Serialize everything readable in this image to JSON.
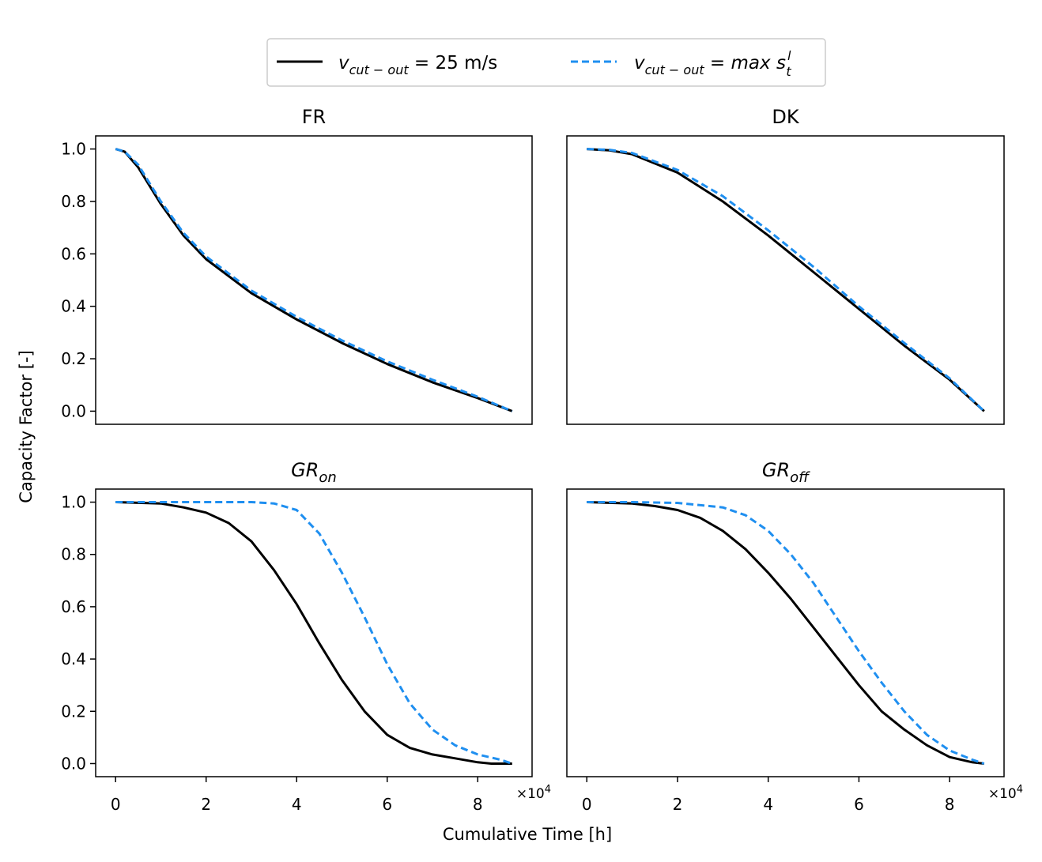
{
  "chart_data": {
    "type": "line",
    "legend": {
      "placement": "top-center",
      "entries": [
        {
          "series_key": "cut25",
          "var": "v",
          "sub": "cut − out",
          "rest": " = 25 m/s"
        },
        {
          "series_key": "cutmax",
          "var": "v",
          "sub": "cut − out",
          "rest": " = ",
          "expr": "max s",
          "expr_sup": "l",
          "expr_sub": "t"
        }
      ]
    },
    "series_styles": {
      "cut25": {
        "color": "#000000",
        "dash": "solid"
      },
      "cutmax": {
        "color": "#1f8ff0",
        "dash": "dashed"
      }
    },
    "xlabel": "Cumulative Time [h]",
    "ylabel": "Capacity Factor [-]",
    "x_multiplier": "×10",
    "x_multiplier_exp": "4",
    "xlim": [
      -0.44,
      9.2
    ],
    "ylim": [
      -0.05,
      1.05
    ],
    "x_ticks": [
      0,
      2,
      4,
      6,
      8
    ],
    "x_tick_labels": [
      "0",
      "2",
      "4",
      "6",
      "8"
    ],
    "y_ticks": [
      0,
      0.2,
      0.4,
      0.6,
      0.8,
      1.0
    ],
    "y_tick_labels": [
      "0.0",
      "0.2",
      "0.4",
      "0.6",
      "0.8",
      "1.0"
    ],
    "panels": [
      {
        "title": "FR",
        "title_base": "",
        "title_sub": "",
        "series": [
          {
            "key": "cut25",
            "x": [
              0,
              0.2,
              0.5,
              1.0,
              1.5,
              2.0,
              3.0,
              4.0,
              5.0,
              6.0,
              7.0,
              8.0,
              8.76
            ],
            "y": [
              1.0,
              0.99,
              0.93,
              0.79,
              0.67,
              0.58,
              0.45,
              0.35,
              0.26,
              0.18,
              0.11,
              0.05,
              0.0
            ]
          },
          {
            "key": "cutmax",
            "x": [
              0,
              0.2,
              0.5,
              1.0,
              1.5,
              2.0,
              3.0,
              4.0,
              5.0,
              6.0,
              7.0,
              8.0,
              8.76
            ],
            "y": [
              1.0,
              0.99,
              0.94,
              0.8,
              0.68,
              0.59,
              0.46,
              0.36,
              0.27,
              0.19,
              0.12,
              0.055,
              0.0
            ]
          }
        ]
      },
      {
        "title": "DK",
        "title_base": "",
        "title_sub": "",
        "series": [
          {
            "key": "cut25",
            "x": [
              0,
              0.5,
              1.0,
              2.0,
              3.0,
              4.0,
              5.0,
              6.0,
              7.0,
              8.0,
              8.76
            ],
            "y": [
              1.0,
              0.995,
              0.98,
              0.91,
              0.8,
              0.67,
              0.53,
              0.39,
              0.25,
              0.12,
              0.0
            ]
          },
          {
            "key": "cutmax",
            "x": [
              0,
              0.5,
              1.0,
              2.0,
              3.0,
              4.0,
              5.0,
              6.0,
              7.0,
              8.0,
              8.76
            ],
            "y": [
              1.0,
              0.997,
              0.985,
              0.92,
              0.82,
              0.69,
              0.55,
              0.4,
              0.26,
              0.125,
              0.0
            ]
          }
        ]
      },
      {
        "title": "",
        "title_base": "GR",
        "title_sub": "on",
        "series": [
          {
            "key": "cut25",
            "x": [
              0,
              1.0,
              1.5,
              2.0,
              2.5,
              3.0,
              3.5,
              4.0,
              4.5,
              5.0,
              5.5,
              6.0,
              6.5,
              7.0,
              7.5,
              8.0,
              8.3,
              8.76
            ],
            "y": [
              1.0,
              0.995,
              0.98,
              0.96,
              0.92,
              0.85,
              0.74,
              0.61,
              0.46,
              0.32,
              0.2,
              0.11,
              0.06,
              0.035,
              0.02,
              0.005,
              0.0,
              0.0
            ]
          },
          {
            "key": "cutmax",
            "x": [
              0,
              1.0,
              2.0,
              3.0,
              3.5,
              4.0,
              4.5,
              5.0,
              5.5,
              6.0,
              6.5,
              7.0,
              7.5,
              8.0,
              8.5,
              8.76
            ],
            "y": [
              1.0,
              1.0,
              1.0,
              1.0,
              0.995,
              0.97,
              0.88,
              0.73,
              0.56,
              0.38,
              0.23,
              0.13,
              0.07,
              0.035,
              0.015,
              0.0
            ]
          }
        ]
      },
      {
        "title": "",
        "title_base": "GR",
        "title_sub": "off",
        "series": [
          {
            "key": "cut25",
            "x": [
              0,
              1.0,
              1.5,
              2.0,
              2.5,
              3.0,
              3.5,
              4.0,
              4.5,
              5.0,
              5.5,
              6.0,
              6.5,
              7.0,
              7.5,
              8.0,
              8.5,
              8.76
            ],
            "y": [
              1.0,
              0.995,
              0.985,
              0.97,
              0.94,
              0.89,
              0.82,
              0.73,
              0.63,
              0.52,
              0.41,
              0.3,
              0.2,
              0.13,
              0.07,
              0.025,
              0.005,
              0.0
            ]
          },
          {
            "key": "cutmax",
            "x": [
              0,
              1.0,
              2.0,
              3.0,
              3.5,
              4.0,
              4.5,
              5.0,
              5.5,
              6.0,
              6.5,
              7.0,
              7.5,
              8.0,
              8.5,
              8.76
            ],
            "y": [
              1.0,
              1.0,
              0.997,
              0.98,
              0.95,
              0.89,
              0.8,
              0.69,
              0.56,
              0.43,
              0.31,
              0.2,
              0.11,
              0.05,
              0.015,
              0.0
            ]
          }
        ]
      }
    ]
  }
}
